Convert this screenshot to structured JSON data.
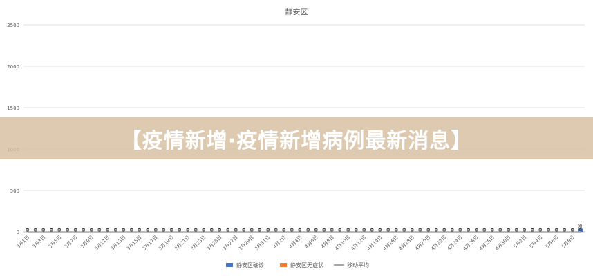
{
  "headline": "【疫情新增·疫情新增病例最新消息】",
  "colors": {
    "confirmed": "#4472c4",
    "asymptomatic": "#ed7d31",
    "moving_avg": "#a5a5a5",
    "grid": "#d9d9d9",
    "axis_text": "#595959"
  },
  "chart_data": {
    "type": "bar",
    "title": "静安区",
    "xlabel": "",
    "ylabel": "",
    "ylim": [
      0,
      2500
    ],
    "yticks": [
      0,
      500,
      1000,
      1500,
      2000,
      2500
    ],
    "grid": true,
    "legend_position": "bottom",
    "categories": [
      "3月1日",
      "3月2日",
      "3月3日",
      "3月4日",
      "3月5日",
      "3月6日",
      "3月7日",
      "3月8日",
      "3月9日",
      "3月10日",
      "3月11日",
      "3月12日",
      "3月13日",
      "3月14日",
      "3月15日",
      "3月16日",
      "3月17日",
      "3月18日",
      "3月19日",
      "3月20日",
      "3月21日",
      "3月22日",
      "3月23日",
      "3月24日",
      "3月25日",
      "3月26日",
      "3月27日",
      "3月28日",
      "3月29日",
      "3月30日",
      "3月31日",
      "4月1日",
      "4月2日",
      "4月3日",
      "4月4日",
      "4月5日",
      "4月6日",
      "4月7日",
      "4月8日",
      "4月9日",
      "4月10日",
      "4月11日",
      "4月12日",
      "4月13日",
      "4月14日",
      "4月15日",
      "4月16日",
      "4月17日",
      "4月18日",
      "4月19日",
      "4月20日",
      "4月21日",
      "4月22日",
      "4月23日",
      "4月24日",
      "4月25日",
      "4月26日",
      "4月27日",
      "4月28日",
      "4月29日",
      "4月30日",
      "5月1日",
      "5月2日",
      "5月3日",
      "5月4日",
      "5月5日",
      "5月6日",
      "5月7日",
      "5月8日",
      "5月9日"
    ],
    "xtick_labels": [
      "3月1日",
      "3月3日",
      "3月5日",
      "3月7日",
      "3月9日",
      "3月11日",
      "3月13日",
      "3月15日",
      "3月17日",
      "3月19日",
      "3月21日",
      "3月23日",
      "3月25日",
      "3月27日",
      "3月29日",
      "3月31日",
      "4月2日",
      "4月4日",
      "4月6日",
      "4月8日",
      "4月10日",
      "4月12日",
      "4月14日",
      "4月16日",
      "4月18日",
      "4月20日",
      "4月22日",
      "4月24日",
      "4月26日",
      "4月28日",
      "4月30日",
      "5月2日",
      "5月4日",
      "5月6日",
      "5月8日"
    ],
    "series": [
      {
        "name": "静安区确诊",
        "type": "bar",
        "values": [
          0,
          0,
          0,
          0,
          0,
          0,
          0,
          0,
          0,
          0,
          0,
          0,
          0,
          0,
          0,
          0,
          0,
          0,
          0,
          0,
          0,
          0,
          0,
          0,
          0,
          0,
          0,
          0,
          0,
          0,
          0,
          0,
          0,
          0,
          0,
          0,
          0,
          0,
          0,
          0,
          0,
          0,
          0,
          0,
          0,
          0,
          0,
          0,
          0,
          0,
          0,
          0,
          0,
          0,
          0,
          0,
          0,
          0,
          0,
          0,
          0,
          0,
          0,
          0,
          0,
          0,
          0,
          0,
          0,
          38
        ]
      },
      {
        "name": "静安区无症状",
        "type": "bar",
        "values": [
          0,
          0,
          0,
          0,
          0,
          0,
          0,
          0,
          0,
          0,
          0,
          0,
          0,
          0,
          0,
          0,
          0,
          0,
          0,
          0,
          0,
          0,
          0,
          0,
          0,
          0,
          0,
          0,
          0,
          0,
          0,
          0,
          0,
          0,
          0,
          0,
          0,
          0,
          0,
          0,
          0,
          0,
          0,
          0,
          0,
          0,
          0,
          0,
          0,
          0,
          0,
          0,
          0,
          0,
          0,
          0,
          0,
          0,
          0,
          0,
          0,
          0,
          0,
          0,
          0,
          0,
          0,
          0,
          0,
          0
        ]
      },
      {
        "name": "移动平均",
        "type": "line",
        "values": [
          0,
          0,
          0,
          0,
          0,
          0,
          0,
          0,
          0,
          0,
          0,
          0,
          0,
          0,
          0,
          0,
          0,
          0,
          0,
          0,
          0,
          0,
          0,
          0,
          0,
          0,
          0,
          0,
          0,
          0,
          0,
          0,
          0,
          0,
          0,
          0,
          0,
          0,
          0,
          0,
          0,
          0,
          0,
          0,
          0,
          0,
          0,
          0,
          0,
          0,
          0,
          0,
          0,
          0,
          0,
          0,
          0,
          0,
          0,
          0,
          0,
          0,
          0,
          0,
          0,
          0,
          0,
          0,
          0,
          0
        ]
      }
    ]
  }
}
